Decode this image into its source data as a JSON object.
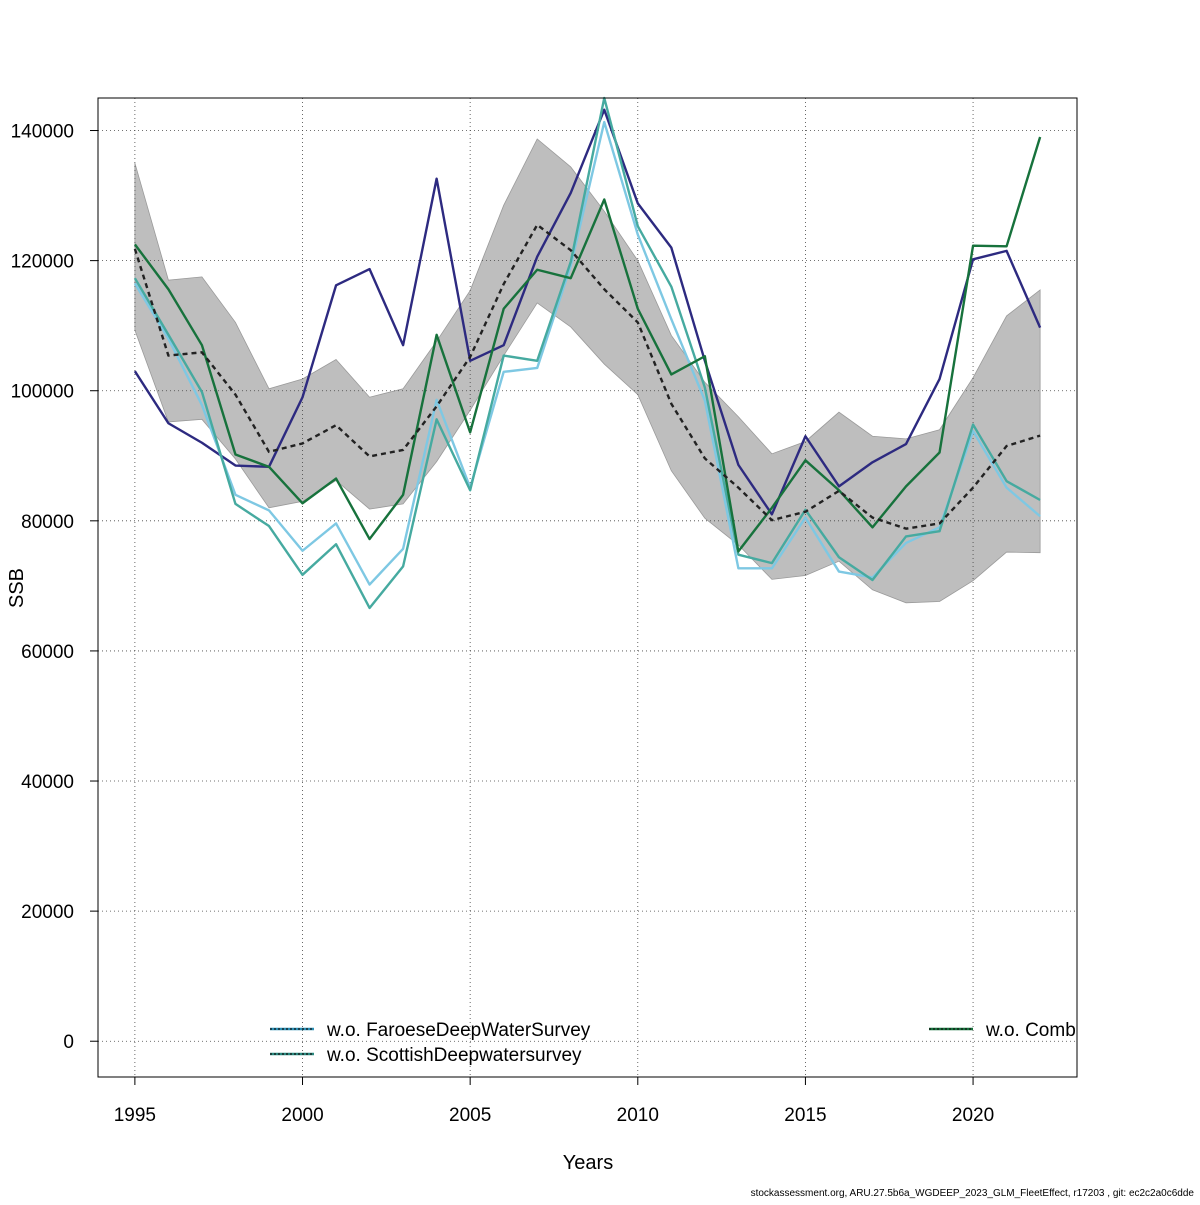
{
  "chart_data": {
    "type": "line",
    "xlabel": "Years",
    "ylabel": "SSB",
    "xlim": [
      1993.9,
      2023.1
    ],
    "ylim": [
      -5500,
      145000
    ],
    "x_ticks": [
      "1995",
      "2000",
      "2005",
      "2010",
      "2015",
      "2020"
    ],
    "y_ticks": [
      "0",
      "20000",
      "40000",
      "60000",
      "80000",
      "100000",
      "120000",
      "140000"
    ],
    "grid": true,
    "x": [
      1995,
      1996,
      1997,
      1998,
      1999,
      2000,
      2001,
      2002,
      2003,
      2004,
      2005,
      2006,
      2007,
      2008,
      2009,
      2010,
      2011,
      2012,
      2013,
      2014,
      2015,
      2016,
      2017,
      2018,
      2019,
      2020,
      2021,
      2022
    ],
    "band": {
      "color": "#bebebe",
      "upper": [
        135000,
        117000,
        117500,
        110500,
        100300,
        101800,
        104800,
        99000,
        100300,
        107600,
        115400,
        128500,
        138700,
        134400,
        127600,
        120000,
        108500,
        101300,
        96000,
        90300,
        92200,
        96700,
        93000,
        92600,
        94000,
        102000,
        111500,
        115500
      ],
      "lower": [
        109300,
        95200,
        95600,
        89500,
        82000,
        83000,
        86200,
        81800,
        82600,
        89100,
        97000,
        105400,
        113500,
        109800,
        104100,
        99400,
        87700,
        80400,
        76300,
        71000,
        71600,
        73800,
        69400,
        67400,
        67600,
        70800,
        75200,
        75100
      ]
    },
    "series": [
      {
        "name": "",
        "color": "#2d2a80",
        "dash": "",
        "values": [
          103000,
          95000,
          92000,
          88500,
          88300,
          99000,
          116200,
          118700,
          107000,
          132600,
          104600,
          107000,
          120600,
          130400,
          143200,
          128800,
          122000,
          104600,
          88600,
          81000,
          93000,
          85300,
          89000,
          91800,
          101800,
          120200,
          121500,
          109700
        ]
      },
      {
        "name": "w.o. FaroeseDeepWaterSurvey",
        "color": "#7ec8e3",
        "dash": "",
        "values": [
          116500,
          108000,
          97800,
          84000,
          81600,
          75400,
          79600,
          70200,
          75700,
          98600,
          85100,
          102900,
          103500,
          119200,
          141300,
          124000,
          111000,
          98500,
          72700,
          72700,
          80500,
          72200,
          71300,
          76600,
          79000,
          93800,
          85100,
          80700
        ]
      },
      {
        "name": "w.o. ScottishDeepwatersurvey",
        "color": "#46aaa0",
        "dash": "",
        "values": [
          117300,
          108600,
          99800,
          82600,
          79200,
          71700,
          76400,
          66600,
          73000,
          95600,
          84700,
          105400,
          104600,
          119800,
          145000,
          125300,
          116000,
          100500,
          74800,
          73500,
          81700,
          74400,
          70900,
          77600,
          78400,
          94800,
          86100,
          83200
        ]
      },
      {
        "name": "w.o. Comb",
        "color": "#17723c",
        "dash": "",
        "values": [
          122500,
          115600,
          107000,
          90200,
          88300,
          82700,
          86500,
          77200,
          84000,
          108600,
          93600,
          112600,
          118600,
          117300,
          129400,
          112600,
          102500,
          105300,
          75300,
          82000,
          89300,
          84700,
          79000,
          85300,
          90500,
          122300,
          122200,
          139000
        ]
      },
      {
        "name": "",
        "color": "#222222",
        "dash": "5,4",
        "values": [
          121800,
          105400,
          105900,
          99400,
          90600,
          91900,
          94700,
          89900,
          90900,
          97600,
          105200,
          116400,
          125500,
          121600,
          115600,
          110500,
          98000,
          89600,
          85100,
          80100,
          81400,
          84600,
          80500,
          78800,
          79600,
          85100,
          91500,
          93100
        ]
      }
    ],
    "legend": {
      "left": [
        {
          "label": "w.o. FaroeseDeepWaterSurvey",
          "color": "#2a8fb5"
        },
        {
          "label": "w.o. ScottishDeepwatersurvey",
          "color": "#2a8a80"
        }
      ],
      "right": [
        {
          "label": "w.o. Comb",
          "color": "#17723c"
        }
      ]
    }
  },
  "footer": "stockassessment.org, ARU.27.5b6a_WGDEEP_2023_GLM_FleetEffect, r17203 , git: ec2c2a0c6dde"
}
